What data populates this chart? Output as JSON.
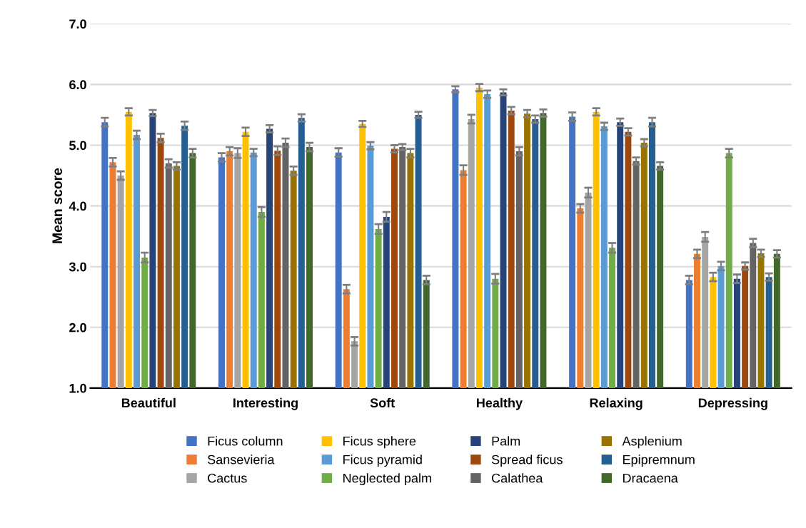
{
  "chart_data": {
    "type": "bar",
    "ylabel": "Mean score",
    "categories": [
      "Beautiful",
      "Interesting",
      "Soft",
      "Healthy",
      "Relaxing",
      "Depressing"
    ],
    "ylim": [
      1.0,
      7.0
    ],
    "yticks": [
      {
        "value": 1,
        "label": "1.0"
      },
      {
        "value": 2,
        "label": "2.0"
      },
      {
        "value": 3,
        "label": "3.0"
      },
      {
        "value": 4,
        "label": "4.0"
      },
      {
        "value": 5,
        "label": "5.0"
      },
      {
        "value": 6,
        "label": "6.0"
      },
      {
        "value": 7,
        "label": "7.0"
      }
    ],
    "grid": "y",
    "legend": "bottom",
    "series": [
      {
        "name": "Ficus column",
        "color": "#4472c4",
        "values": [
          5.38,
          4.8,
          4.88,
          5.92,
          5.47,
          2.78
        ],
        "errors": [
          0.07,
          0.07,
          0.07,
          0.05,
          0.07,
          0.07
        ]
      },
      {
        "name": "Sansevieria",
        "color": "#ed7d31",
        "values": [
          4.72,
          4.9,
          2.63,
          4.59,
          3.96,
          3.21
        ],
        "errors": [
          0.07,
          0.07,
          0.07,
          0.08,
          0.07,
          0.07
        ]
      },
      {
        "name": "Cactus",
        "color": "#a5a5a5",
        "values": [
          4.5,
          4.87,
          1.77,
          5.43,
          4.22,
          3.49
        ],
        "errors": [
          0.07,
          0.08,
          0.07,
          0.07,
          0.08,
          0.08
        ]
      },
      {
        "name": "Ficus sphere",
        "color": "#ffc000",
        "values": [
          5.55,
          5.22,
          5.35,
          5.95,
          5.55,
          2.83
        ],
        "errors": [
          0.06,
          0.07,
          0.05,
          0.06,
          0.06,
          0.07
        ]
      },
      {
        "name": "Ficus pyramid",
        "color": "#5b9bd5",
        "values": [
          5.17,
          4.88,
          4.99,
          5.84,
          5.31,
          3.01
        ],
        "errors": [
          0.07,
          0.06,
          0.06,
          0.06,
          0.06,
          0.07
        ]
      },
      {
        "name": "Neglected palm",
        "color": "#70ad47",
        "values": [
          3.15,
          3.9,
          3.62,
          2.8,
          3.31,
          4.87
        ],
        "errors": [
          0.08,
          0.08,
          0.08,
          0.08,
          0.08,
          0.07
        ]
      },
      {
        "name": "Palm",
        "color": "#264478",
        "values": [
          5.53,
          5.27,
          3.82,
          5.87,
          5.38,
          2.8
        ],
        "errors": [
          0.05,
          0.06,
          0.08,
          0.05,
          0.06,
          0.07
        ]
      },
      {
        "name": "Spread ficus",
        "color": "#9e480e",
        "values": [
          5.12,
          4.91,
          4.94,
          5.57,
          5.22,
          3.01
        ],
        "errors": [
          0.07,
          0.07,
          0.06,
          0.06,
          0.06,
          0.06
        ]
      },
      {
        "name": "Calathea",
        "color": "#636363",
        "values": [
          4.7,
          5.04,
          4.97,
          4.9,
          4.74,
          3.39
        ],
        "errors": [
          0.07,
          0.07,
          0.05,
          0.07,
          0.06,
          0.07
        ]
      },
      {
        "name": "Asplenium",
        "color": "#997300",
        "values": [
          4.66,
          4.58,
          4.87,
          5.52,
          5.04,
          3.22
        ],
        "errors": [
          0.06,
          0.07,
          0.07,
          0.06,
          0.06,
          0.06
        ]
      },
      {
        "name": "Epipremnum",
        "color": "#255e91",
        "values": [
          5.32,
          5.45,
          5.5,
          5.43,
          5.38,
          2.83
        ],
        "errors": [
          0.07,
          0.06,
          0.05,
          0.06,
          0.07,
          0.06
        ]
      },
      {
        "name": "Dracaena",
        "color": "#43682b",
        "values": [
          4.87,
          4.97,
          2.78,
          5.53,
          4.66,
          3.21
        ],
        "errors": [
          0.07,
          0.07,
          0.07,
          0.06,
          0.06,
          0.06
        ]
      }
    ]
  }
}
